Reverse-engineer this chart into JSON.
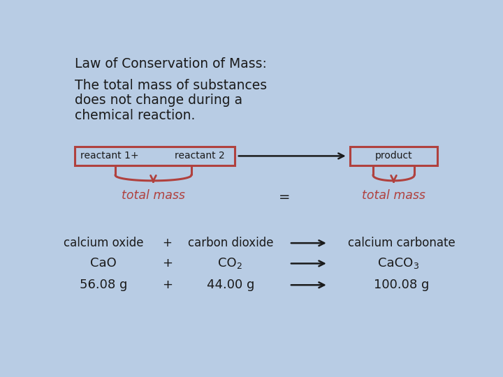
{
  "bg_color": "#b8cce4",
  "title": "Law of Conservation of Mass:",
  "subtitle_lines": [
    "The total mass of substances",
    "does not change during a",
    "chemical reaction."
  ],
  "box_color": "#b0413e",
  "box_left_label_1": "reactant 1",
  "box_left_label_2": "+",
  "box_left_label_3": "reactant 2",
  "box_right_label": "product",
  "total_mass_left": "total mass",
  "total_mass_right": "total mass",
  "equals": "=",
  "row1": [
    "calcium oxide",
    "+",
    "carbon dioxide",
    "calcium carbonate"
  ],
  "row2_left": "CaO",
  "row2_plus": "+",
  "row2_mid": "CO",
  "row2_mid_sub": "2",
  "row2_right": "CaCO",
  "row2_right_sub": "3",
  "row3": [
    "56.08 g",
    "+",
    "44.00 g",
    "100.08 g"
  ],
  "text_color": "#1a1a1a",
  "red_color": "#b0413e",
  "arrow_color": "#1a1a1a"
}
